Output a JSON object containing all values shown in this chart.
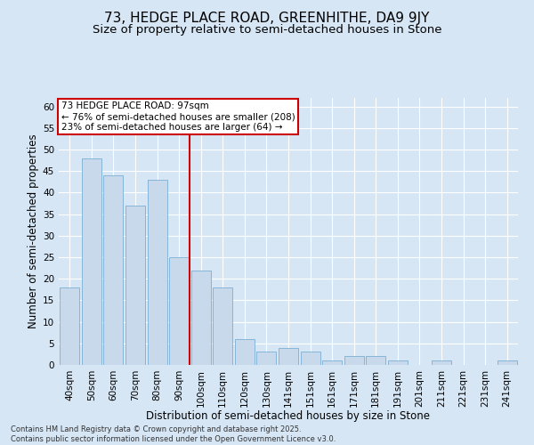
{
  "title1": "73, HEDGE PLACE ROAD, GREENHITHE, DA9 9JY",
  "title2": "Size of property relative to semi-detached houses in Stone",
  "xlabel": "Distribution of semi-detached houses by size in Stone",
  "ylabel": "Number of semi-detached properties",
  "categories": [
    "40sqm",
    "50sqm",
    "60sqm",
    "70sqm",
    "80sqm",
    "90sqm",
    "100sqm",
    "110sqm",
    "120sqm",
    "130sqm",
    "141sqm",
    "151sqm",
    "161sqm",
    "171sqm",
    "181sqm",
    "191sqm",
    "201sqm",
    "211sqm",
    "221sqm",
    "231sqm",
    "241sqm"
  ],
  "values": [
    18,
    48,
    44,
    37,
    43,
    25,
    22,
    18,
    6,
    3,
    4,
    3,
    1,
    2,
    2,
    1,
    0,
    1,
    0,
    0,
    1
  ],
  "bar_color": "#c8d9ec",
  "bar_edge_color": "#7bafd4",
  "vline_index": 5.5,
  "annotation_title": "73 HEDGE PLACE ROAD: 97sqm",
  "annotation_line1": "← 76% of semi-detached houses are smaller (208)",
  "annotation_line2": "23% of semi-detached houses are larger (64) →",
  "annotation_box_facecolor": "#ffffff",
  "annotation_box_edgecolor": "#cc0000",
  "vline_color": "#cc0000",
  "bg_color": "#d6e6f5",
  "plot_bg_color": "#d6e6f5",
  "footer1": "Contains HM Land Registry data © Crown copyright and database right 2025.",
  "footer2": "Contains public sector information licensed under the Open Government Licence v3.0.",
  "ylim": [
    0,
    62
  ],
  "yticks": [
    0,
    5,
    10,
    15,
    20,
    25,
    30,
    35,
    40,
    45,
    50,
    55,
    60
  ],
  "title1_fontsize": 11,
  "title2_fontsize": 9.5,
  "xlabel_fontsize": 8.5,
  "ylabel_fontsize": 8.5,
  "tick_fontsize": 7.5,
  "ann_fontsize": 7.5,
  "footer_fontsize": 6.0
}
